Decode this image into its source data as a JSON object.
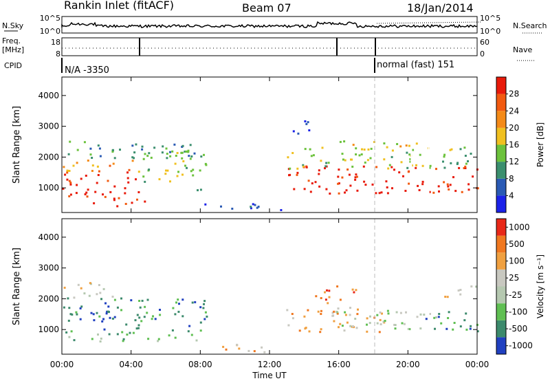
{
  "header": {
    "title": "Rankin Inlet (fitACF)",
    "beam": "Beam 07",
    "date": "18/Jan/2014"
  },
  "top_panel": {
    "left_label": "N.Sky",
    "right_label": "N.Search",
    "y_ticks": [
      "10^5",
      "10^0"
    ],
    "right_ticks": [
      "10^5",
      "10^0"
    ]
  },
  "freq_panel": {
    "left_label_1": "Freq.",
    "left_label_2": "[MHz]",
    "right_label": "Nave",
    "y_ticks": [
      "18",
      "8"
    ],
    "right_ticks": [
      "60",
      "0"
    ]
  },
  "cpid": {
    "label": "CPID",
    "segment1": "N/A -3350",
    "segment2": "normal (fast) 151"
  },
  "chart_data": [
    {
      "type": "heatmap",
      "title": "",
      "xlabel": "",
      "ylabel": "Slant Range [km]",
      "xlim": [
        "00:00",
        "00:00"
      ],
      "ylim": [
        200,
        4600
      ],
      "y_ticks": [
        "1000",
        "2000",
        "3000",
        "4000"
      ],
      "colorbar": {
        "label": "Power [dB]",
        "ticks": [
          "4",
          "8",
          "12",
          "16",
          "20",
          "24",
          "28"
        ],
        "colors": [
          "#1b22e8",
          "#2a5ab4",
          "#3b8f6e",
          "#6cc23c",
          "#f0c020",
          "#f48a18",
          "#f25a10",
          "#e81a0a"
        ]
      }
    },
    {
      "type": "heatmap",
      "title": "",
      "xlabel": "Time UT",
      "ylabel": "Slant Range [km]",
      "xlim": [
        "00:00",
        "00:00"
      ],
      "ylim": [
        200,
        4600
      ],
      "x_ticks": [
        "00:00",
        "04:00",
        "08:00",
        "12:00",
        "16:00",
        "20:00",
        "00:00"
      ],
      "y_ticks": [
        "1000",
        "2000",
        "3000",
        "4000"
      ],
      "colorbar": {
        "label": "Velocity [m s⁻¹]",
        "ticks": [
          "1000",
          "500",
          "100",
          "25",
          "-25",
          "-100",
          "-500",
          "-1000"
        ],
        "colors": [
          "#2040c0",
          "#3c8a6c",
          "#5fbf52",
          "#b5c8b0",
          "#c8c8c0",
          "#f0a040",
          "#f07820",
          "#e82818"
        ]
      }
    }
  ]
}
